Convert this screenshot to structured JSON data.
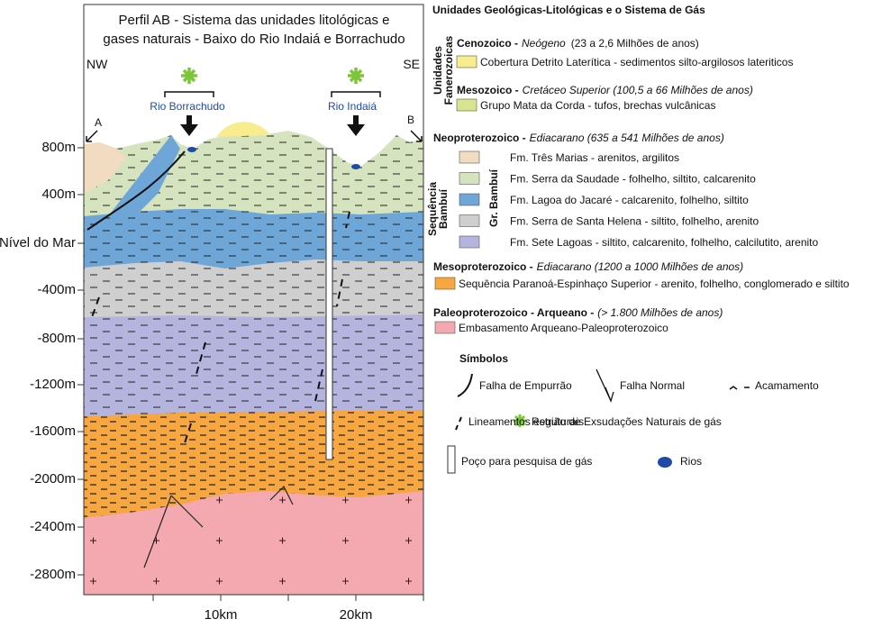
{
  "section": {
    "title": [
      "Perfil AB - Sistema das unidades litológicas e",
      "gases naturais - Baixo do Rio Indaiá e Borrachudo"
    ],
    "orientation": {
      "left": "NW",
      "right": "SE"
    },
    "endpoints": [
      "A",
      "B"
    ],
    "rivers": [
      "Rio Borrachudo",
      "Rio Indaiá"
    ],
    "depth_labels": [
      "800m",
      "400m",
      "Nível do Mar",
      "-400m",
      "-800m",
      "-1200m",
      "-1600m",
      "-2000m",
      "-2400m",
      "-2800m"
    ],
    "distance_labels": [
      "10km",
      "20km"
    ]
  },
  "legend": {
    "title": "Unidades Geológicas-Litológicas  e o Sistema de Gás",
    "phanerozoic_label": [
      "Unidades",
      "Fanerozoicas"
    ],
    "sequence_label": [
      "Sequência",
      "Bambuí"
    ],
    "group_label": "Gr. Bambuí",
    "periods": [
      {
        "era": "Cenozoico -",
        "period": "Neógeno",
        "age": "(23 a 2,6 Milhões de anos)",
        "units": [
          "Cobertura Detrito Laterítica - sedimentos silto-argilosos lateriticos"
        ]
      },
      {
        "era": "Mesozoico -",
        "period": "Cretáceo Superior (100,5 a 66 Milhões de anos)",
        "units": [
          "Grupo Mata da Corda - tufos, brechas vulcânicas"
        ]
      },
      {
        "era": "Neoproterozoico -",
        "period": "Ediacarano (635 a 541 Milhões de anos)",
        "units": [
          "Fm. Três Marias - arenitos, argilitos",
          "Fm. Serra da Saudade - folhelho, siltito, calcarenito",
          "Fm. Lagoa do Jacaré - calcarenito, folhelho, siltito",
          "Fm. Serra de Santa Helena - siltito, folhelho, arenito",
          "Fm. Sete Lagoas - siltito, calcarenito, folhelho, calcilutito, arenito"
        ]
      },
      {
        "era": "Mesoproterozoico -",
        "period": "Ediacarano (1200 a 1000 Milhões de anos)",
        "units": [
          "Sequência Paranoá-Espinhaço Superior - arenito, folhelho, conglomerado e siltito"
        ]
      },
      {
        "era": "Paleoproterozoico - Arqueano -",
        "period": "(> 1.800 Milhões de anos)",
        "units": [
          "Embasamento Arqueano-Paleoproterozoico"
        ]
      }
    ]
  },
  "symbols": {
    "title": "Símbolos",
    "items": [
      "Falha de Empurrão",
      "Falha Normal",
      "Acamamento",
      "Lineamentos estruturais",
      "Região de Exsudações Naturais de gás",
      "Poço para pesquisa de gás",
      "Rios"
    ]
  }
}
